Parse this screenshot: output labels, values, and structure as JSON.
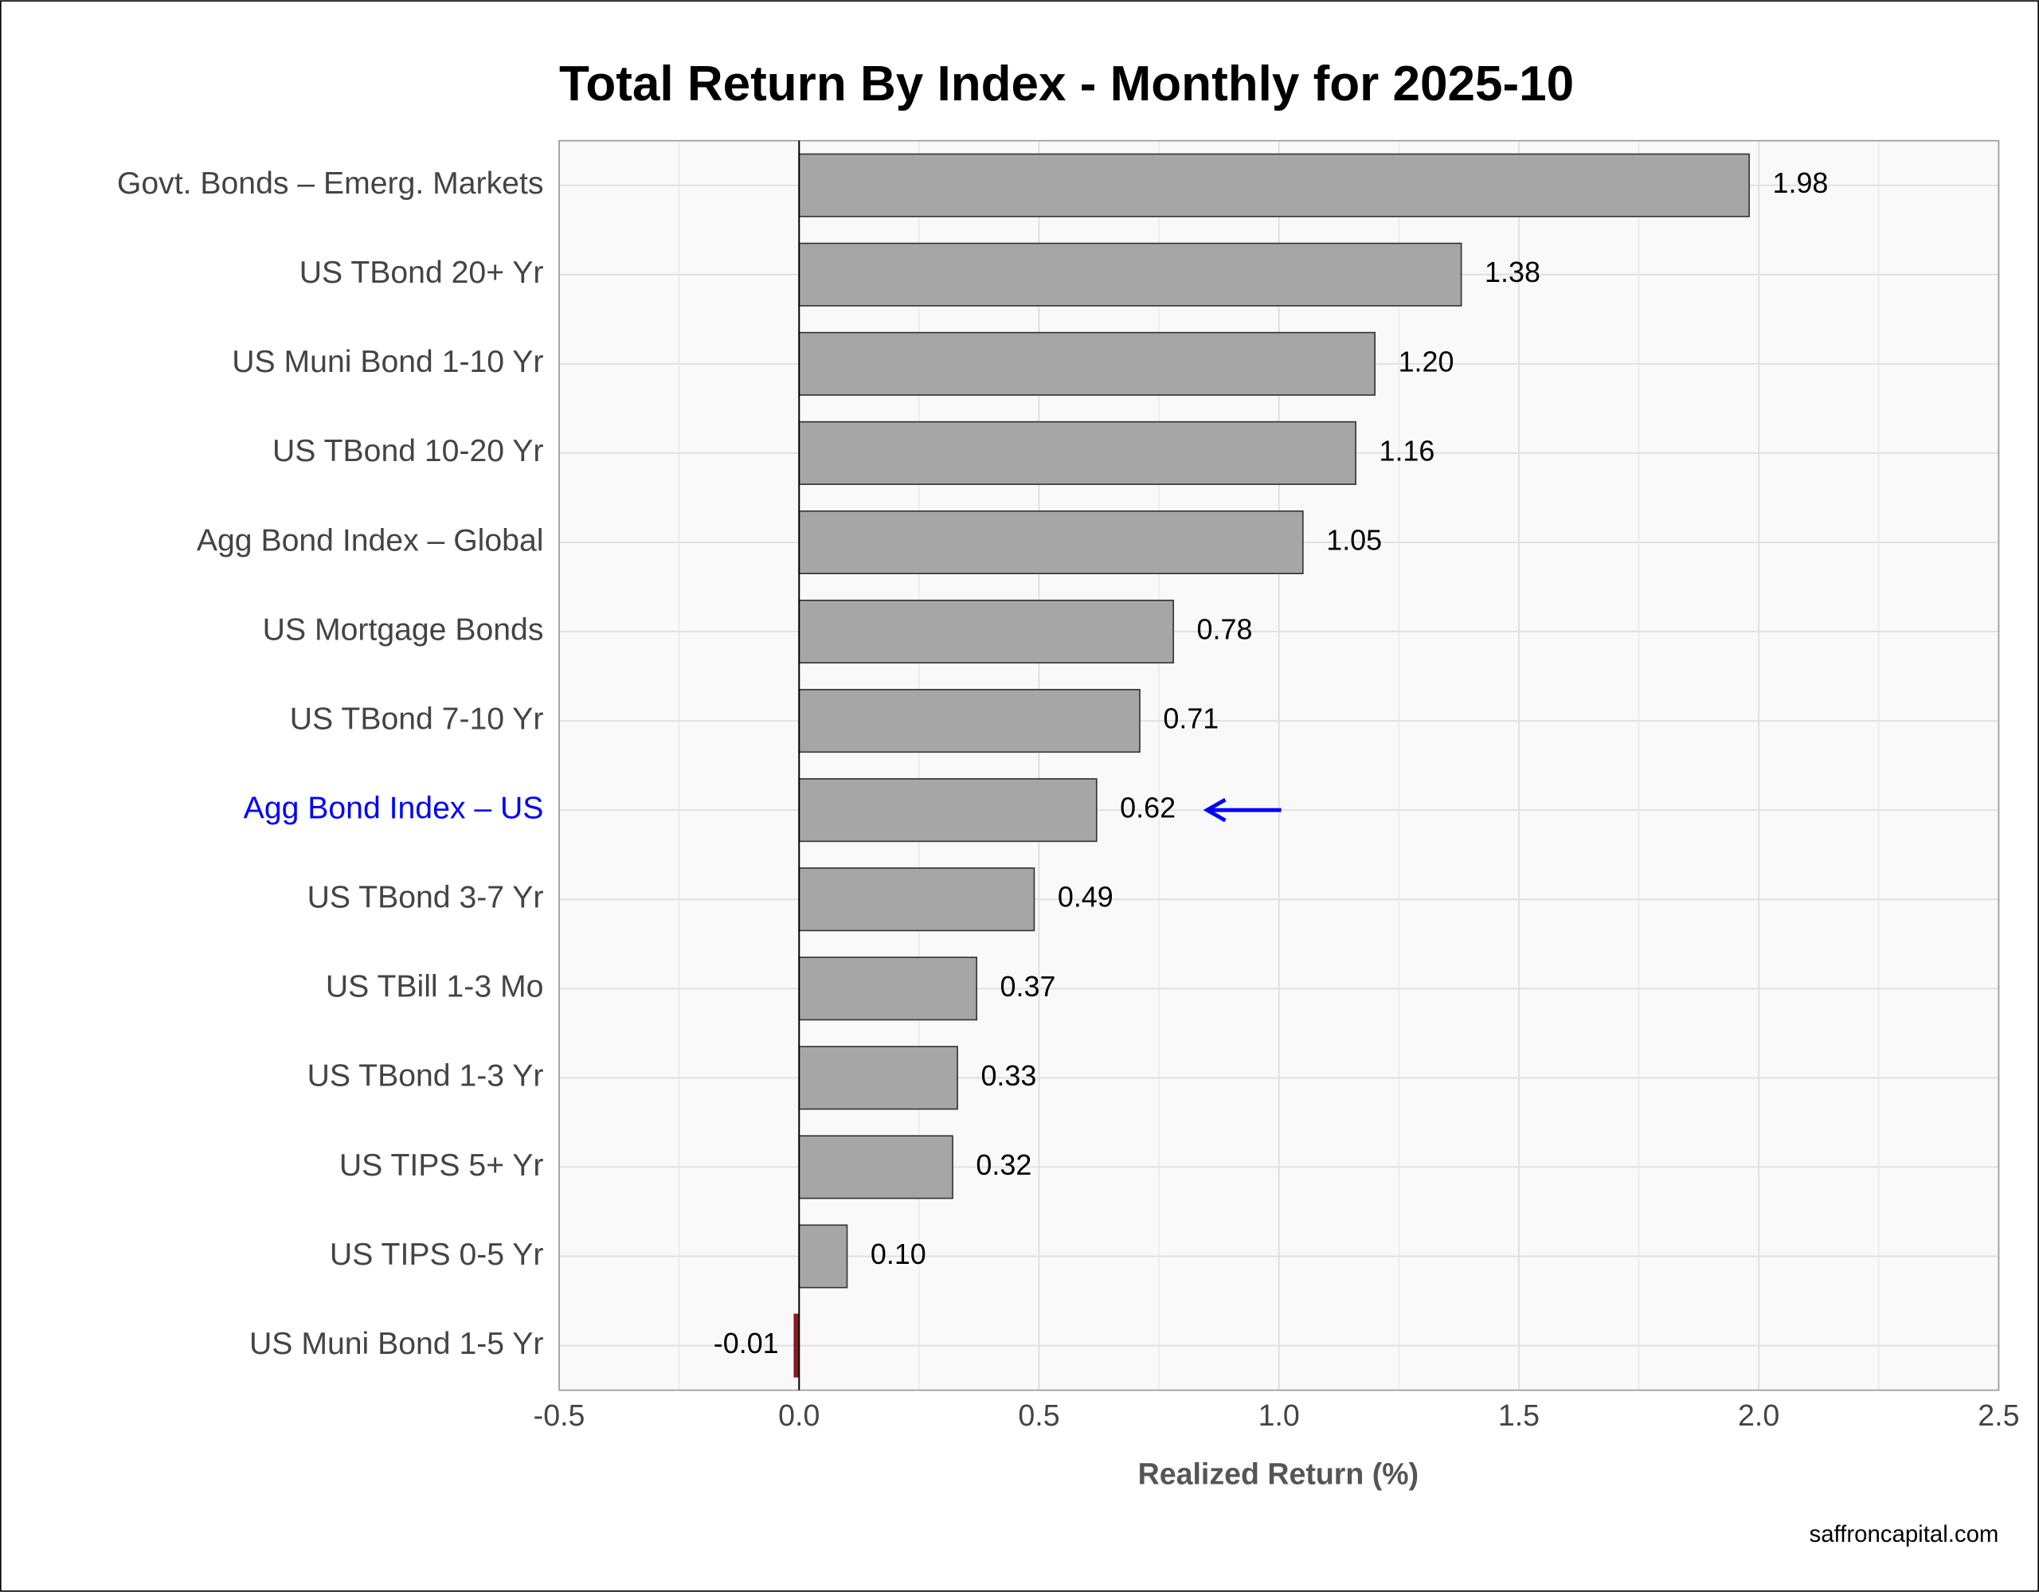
{
  "chart_data": {
    "type": "barh",
    "title": "Total Return By Index - Monthly for 2025-10",
    "x_label": "Realized Return (%)",
    "footer": "saffroncapital.com",
    "categories": [
      "Govt. Bonds – Emerg. Markets",
      "US TBond 20+ Yr",
      "US Muni Bond 1-10 Yr",
      "US TBond 10-20 Yr",
      "Agg Bond Index – Global",
      "US Mortgage Bonds",
      "US TBond 7-10 Yr",
      "Agg Bond Index – US",
      "US TBond 3-7 Yr",
      "US TBill 1-3 Mo",
      "US TBond 1-3 Yr",
      "US TIPS 5+ Yr",
      "US TIPS 0-5 Yr",
      "US Muni Bond 1-5 Yr"
    ],
    "values": [
      1.98,
      1.38,
      1.2,
      1.16,
      1.05,
      0.78,
      0.71,
      0.62,
      0.49,
      0.37,
      0.33,
      0.32,
      0.1,
      -0.01
    ],
    "value_labels": [
      "1.98",
      "1.38",
      "1.20",
      "1.16",
      "1.05",
      "0.78",
      "0.71",
      "0.62",
      "0.49",
      "0.37",
      "0.33",
      "0.32",
      "0.10",
      "-0.01"
    ],
    "color": "#a6a6a6",
    "negative_color": "#8b1a1a",
    "highlight": {
      "category_index": 7,
      "color": "#0000ff"
    },
    "xlim": [
      -0.5,
      2.5
    ],
    "xticks": [
      -0.5,
      {
        "value": 0,
        "label": "0.0"
      },
      0.5,
      {
        "value": 1,
        "label": "1.0"
      },
      1.5,
      {
        "value": 2,
        "label": "2.0"
      },
      2.5
    ],
    "grid": true,
    "minor_grid": true
  }
}
